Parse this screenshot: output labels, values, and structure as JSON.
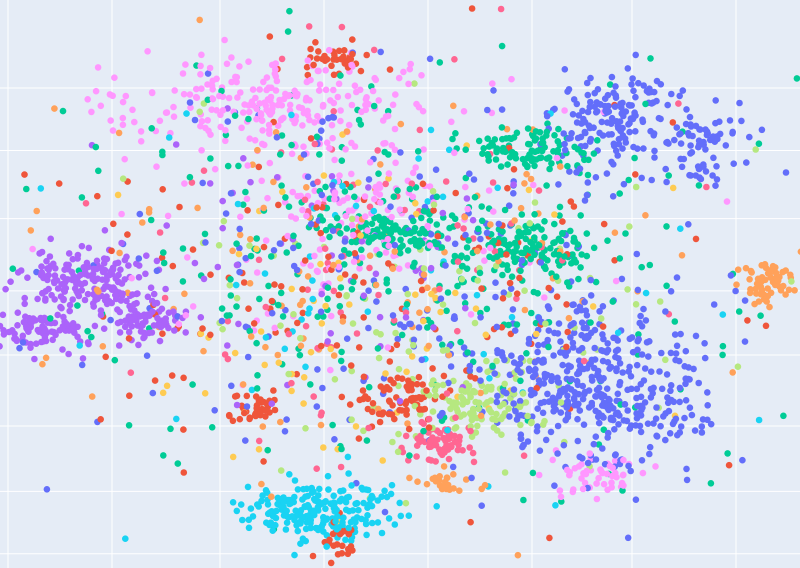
{
  "chart_data": {
    "type": "scatter",
    "title": "",
    "xlabel": "",
    "ylabel": "",
    "grid": true,
    "legend": "none",
    "background": "#e5ecf6",
    "gridline_color": "#ffffff",
    "xlim": [
      0,
      100
    ],
    "ylim": [
      0,
      100
    ],
    "x_gridlines": [
      1,
      14,
      27.5,
      40.5,
      53.5,
      66.5,
      79,
      92
    ],
    "y_gridlines": [
      2.5,
      13.5,
      25,
      37.5,
      48.8,
      61.5,
      73.5,
      84.5
    ],
    "series": [
      {
        "color": "#636efa",
        "clusters": [
          {
            "x": 77,
            "y": 78,
            "sx": 4,
            "sy": 5,
            "n": 160
          },
          {
            "x": 74,
            "y": 32,
            "sx": 7,
            "sy": 7,
            "n": 420
          },
          {
            "x": 88,
            "y": 76,
            "sx": 2,
            "sy": 2,
            "n": 45
          },
          {
            "x": 87,
            "y": 70,
            "sx": 2,
            "sy": 1.5,
            "n": 18
          },
          {
            "x": 52,
            "y": 50,
            "sx": 20,
            "sy": 18,
            "n": 220
          }
        ]
      },
      {
        "color": "#ab63fa",
        "clusters": [
          {
            "x": 12,
            "y": 51,
            "sx": 4,
            "sy": 3,
            "n": 180
          },
          {
            "x": 5,
            "y": 42,
            "sx": 2.5,
            "sy": 2,
            "n": 90
          },
          {
            "x": 18,
            "y": 44,
            "sx": 2.5,
            "sy": 2,
            "n": 70
          },
          {
            "x": 40,
            "y": 55,
            "sx": 12,
            "sy": 12,
            "n": 60
          }
        ]
      },
      {
        "color": "#00cc96",
        "clusters": [
          {
            "x": 66,
            "y": 74,
            "sx": 4,
            "sy": 2,
            "n": 90
          },
          {
            "x": 66,
            "y": 56,
            "sx": 4,
            "sy": 3,
            "n": 120
          },
          {
            "x": 49,
            "y": 59,
            "sx": 4,
            "sy": 2,
            "n": 110
          },
          {
            "x": 50,
            "y": 55,
            "sx": 20,
            "sy": 17,
            "n": 300
          }
        ]
      },
      {
        "color": "#ff97ff",
        "clusters": [
          {
            "x": 34,
            "y": 82,
            "sx": 9,
            "sy": 4,
            "n": 220
          },
          {
            "x": 46,
            "y": 63,
            "sx": 6,
            "sy": 4,
            "n": 70
          },
          {
            "x": 75,
            "y": 16,
            "sx": 3,
            "sy": 2,
            "n": 50
          },
          {
            "x": 42,
            "y": 65,
            "sx": 16,
            "sy": 14,
            "n": 110
          }
        ]
      },
      {
        "color": "#19d3f3",
        "clusters": [
          {
            "x": 40,
            "y": 10,
            "sx": 5,
            "sy": 2.5,
            "n": 210
          },
          {
            "x": 45,
            "y": 50,
            "sx": 18,
            "sy": 18,
            "n": 60
          }
        ]
      },
      {
        "color": "#ef553b",
        "clusters": [
          {
            "x": 42,
            "y": 4,
            "sx": 1.5,
            "sy": 1.5,
            "n": 25
          },
          {
            "x": 32,
            "y": 28,
            "sx": 1.8,
            "sy": 1.5,
            "n": 35
          },
          {
            "x": 50,
            "y": 30,
            "sx": 3,
            "sy": 2,
            "n": 60
          },
          {
            "x": 42,
            "y": 90,
            "sx": 2,
            "sy": 1.2,
            "n": 35
          },
          {
            "x": 45,
            "y": 50,
            "sx": 18,
            "sy": 17,
            "n": 160
          }
        ]
      },
      {
        "color": "#ff6692",
        "clusters": [
          {
            "x": 55,
            "y": 22,
            "sx": 2,
            "sy": 2,
            "n": 65
          },
          {
            "x": 45,
            "y": 55,
            "sx": 17,
            "sy": 17,
            "n": 90
          }
        ]
      },
      {
        "color": "#ffa15a",
        "clusters": [
          {
            "x": 96,
            "y": 50,
            "sx": 1.8,
            "sy": 2,
            "n": 55
          },
          {
            "x": 55,
            "y": 15,
            "sx": 2,
            "sy": 1,
            "n": 25
          },
          {
            "x": 45,
            "y": 50,
            "sx": 18,
            "sy": 17,
            "n": 110
          }
        ]
      },
      {
        "color": "#b6e880",
        "clusters": [
          {
            "x": 61,
            "y": 29,
            "sx": 4,
            "sy": 3,
            "n": 110
          },
          {
            "x": 55,
            "y": 48,
            "sx": 17,
            "sy": 16,
            "n": 100
          }
        ]
      },
      {
        "color": "#fecb52",
        "clusters": [
          {
            "x": 42,
            "y": 45,
            "sx": 15,
            "sy": 15,
            "n": 70
          }
        ]
      }
    ]
  }
}
